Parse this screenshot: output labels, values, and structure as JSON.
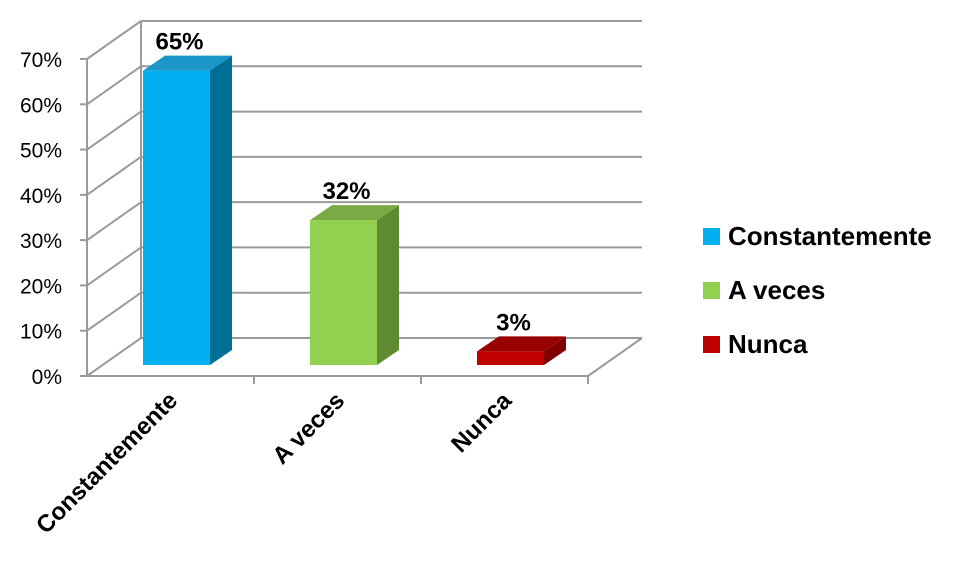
{
  "chart_data": {
    "type": "bar",
    "categories": [
      "Constantemente",
      "A veces",
      "Nunca"
    ],
    "values": [
      65,
      32,
      3
    ],
    "data_labels": [
      "65%",
      "32%",
      "3%"
    ],
    "ylim": [
      0,
      70
    ],
    "yticks": [
      "0%",
      "10%",
      "20%",
      "30%",
      "40%",
      "50%",
      "60%",
      "70%"
    ],
    "grid": true,
    "legend_position": "right",
    "colors": {
      "Constantemente": {
        "front": "#00b0f0",
        "side": "#006f96",
        "top": "#1c96c8"
      },
      "A veces": {
        "front": "#92d050",
        "side": "#5e8a31",
        "top": "#79aa43"
      },
      "Nunca": {
        "front": "#c00000",
        "side": "#7e0000",
        "top": "#990000"
      }
    },
    "legend": [
      {
        "label": "Constantemente",
        "color": "#00b0f0"
      },
      {
        "label": "A veces",
        "color": "#92d050"
      },
      {
        "label": "Nunca",
        "color": "#c00000"
      }
    ]
  }
}
